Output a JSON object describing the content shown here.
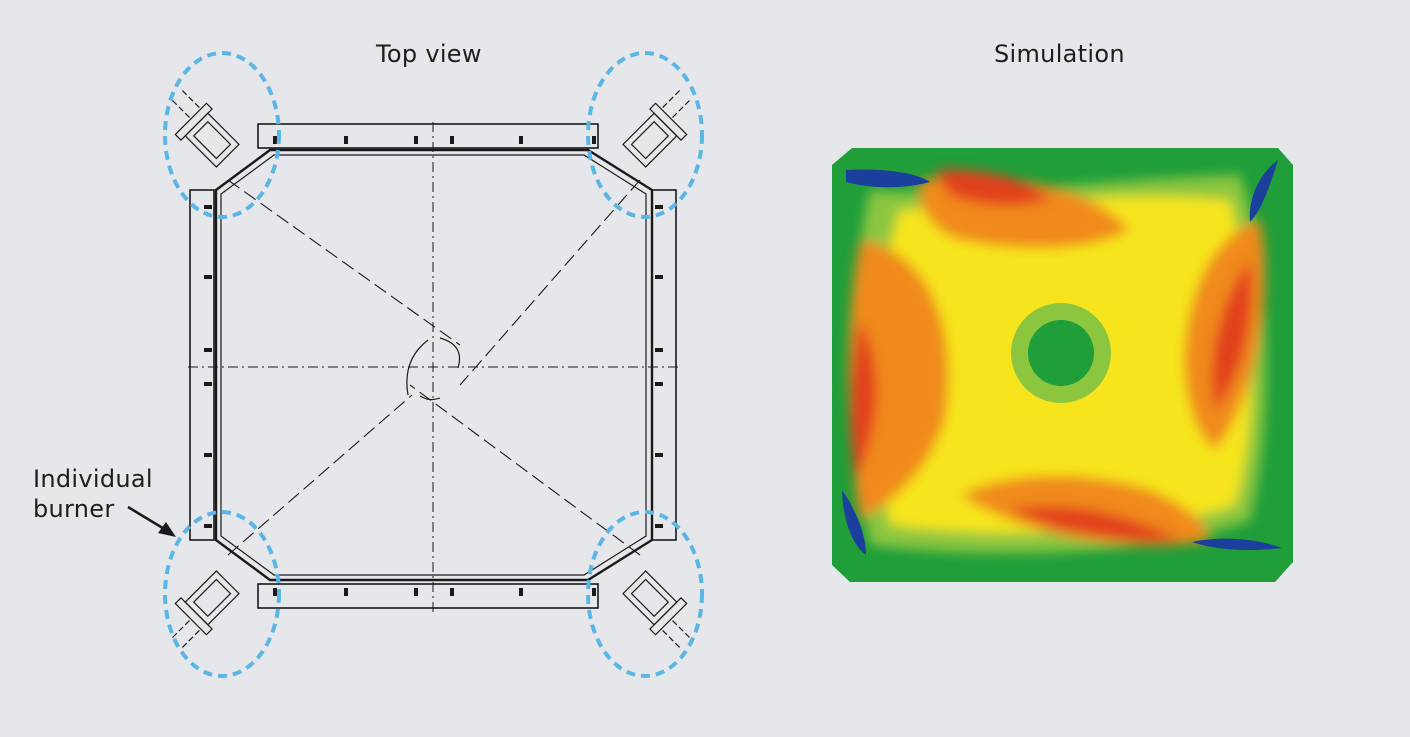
{
  "titles": {
    "top_view": "Top view",
    "simulation": "Simulation"
  },
  "annotation": {
    "line1": "Individual",
    "line2": "burner"
  },
  "colors": {
    "background": "#e6e7ea",
    "drawing_line": "#1a1a1a",
    "highlight_circle": "#5bb6e6",
    "sim_green": "#1f9e3a",
    "sim_light_green": "#8cc63f",
    "sim_yellow": "#f6e51c",
    "sim_orange": "#f08a1c",
    "sim_red": "#e2401c",
    "sim_blue": "#1b3f9c"
  },
  "icons": {
    "arrow": "arrow-pointer-icon"
  }
}
